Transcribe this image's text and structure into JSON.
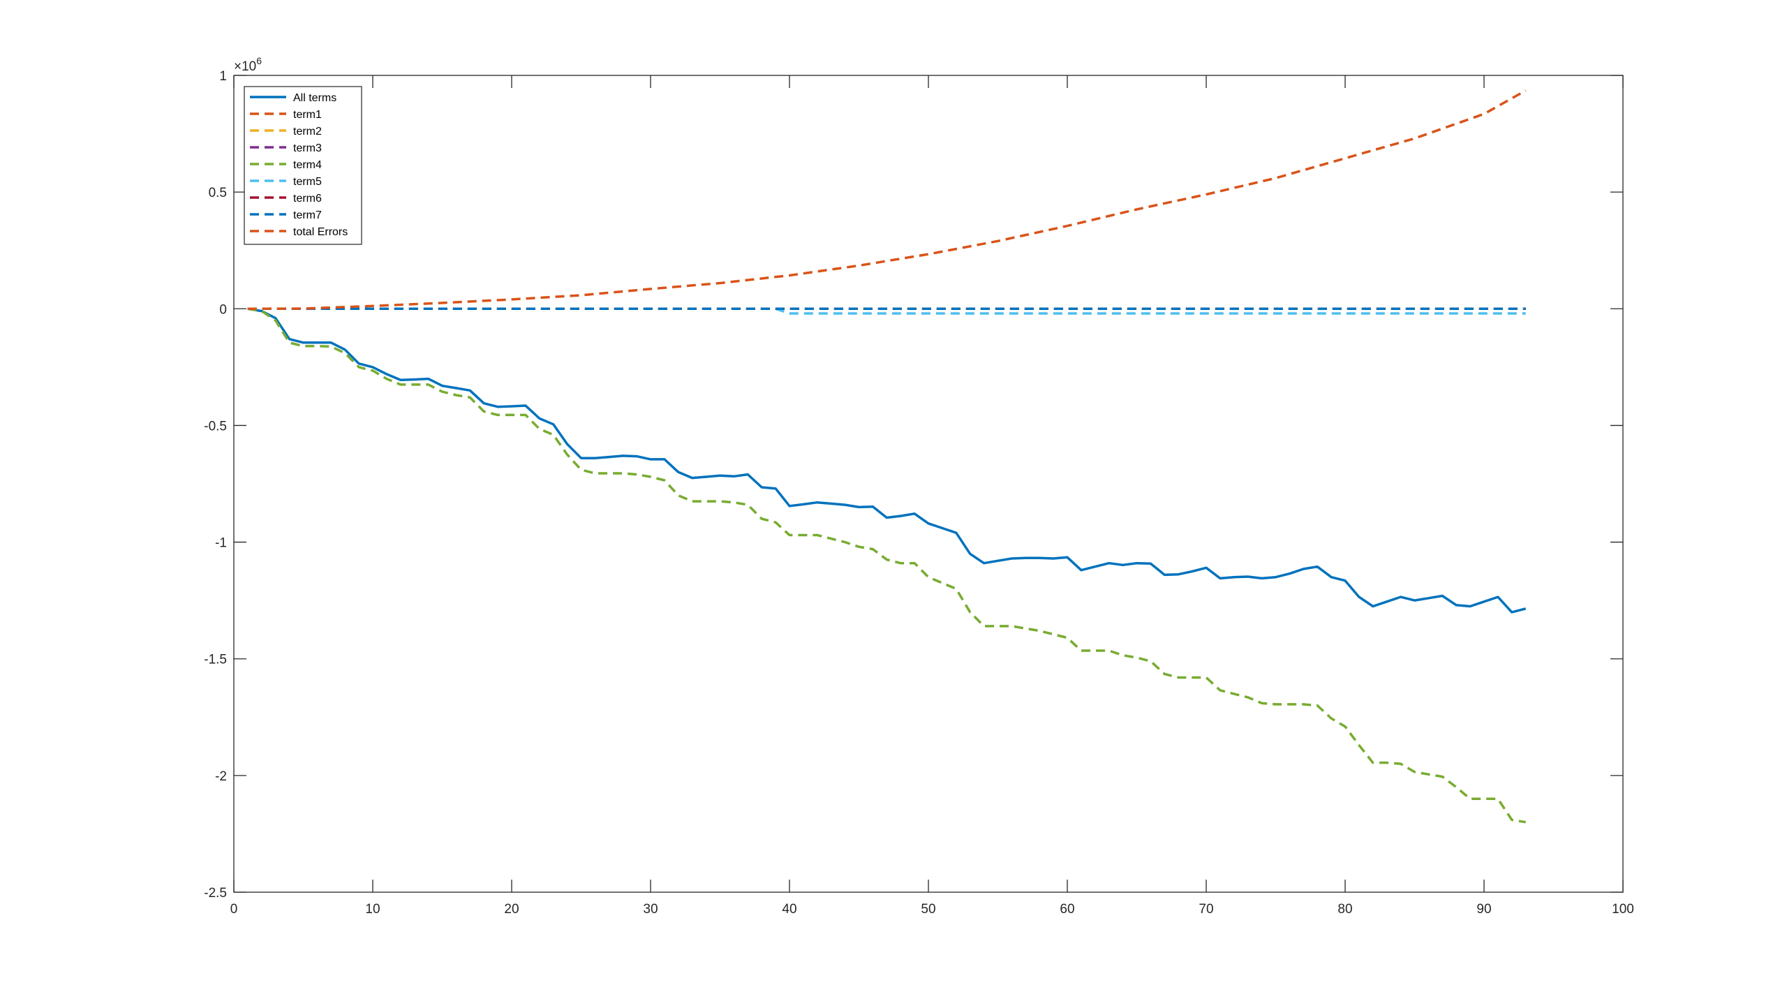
{
  "chart_data": {
    "type": "line",
    "title": "",
    "xlabel": "",
    "ylabel": "",
    "xlim": [
      0,
      100
    ],
    "ylim": [
      -2.5,
      1
    ],
    "y_exponent_label": "×10",
    "y_exponent_power": "6",
    "grid": false,
    "legend_position": "top-left",
    "x_ticks": [
      0,
      10,
      20,
      30,
      40,
      50,
      60,
      70,
      80,
      90,
      100
    ],
    "x_tick_labels": [
      "0",
      "10",
      "20",
      "30",
      "40",
      "50",
      "60",
      "70",
      "80",
      "90",
      "100"
    ],
    "y_ticks": [
      1,
      0.5,
      0,
      -0.5,
      -1,
      -1.5,
      -2,
      -2.5
    ],
    "y_tick_labels": [
      "1",
      "0.5",
      "0",
      "-0.5",
      "-1",
      "-1.5",
      "-2",
      "-2.5"
    ],
    "series": [
      {
        "name": "All terms",
        "color": "#0072BD",
        "dash": "solid",
        "points": [
          [
            1,
            0
          ],
          [
            2,
            -0.01
          ],
          [
            3,
            -0.04
          ],
          [
            4,
            -0.13
          ],
          [
            5,
            -0.145
          ],
          [
            6,
            -0.145
          ],
          [
            7,
            -0.145
          ],
          [
            8,
            -0.175
          ],
          [
            9,
            -0.235
          ],
          [
            10,
            -0.25
          ],
          [
            11,
            -0.28
          ],
          [
            12,
            -0.305
          ],
          [
            13,
            -0.303
          ],
          [
            14,
            -0.3
          ],
          [
            15,
            -0.33
          ],
          [
            16,
            -0.34
          ],
          [
            17,
            -0.35
          ],
          [
            18,
            -0.405
          ],
          [
            19,
            -0.42
          ],
          [
            20,
            -0.418
          ],
          [
            21,
            -0.415
          ],
          [
            22,
            -0.47
          ],
          [
            23,
            -0.495
          ],
          [
            24,
            -0.58
          ],
          [
            25,
            -0.64
          ],
          [
            26,
            -0.64
          ],
          [
            27,
            -0.635
          ],
          [
            28,
            -0.63
          ],
          [
            29,
            -0.632
          ],
          [
            30,
            -0.645
          ],
          [
            31,
            -0.645
          ],
          [
            32,
            -0.7
          ],
          [
            33,
            -0.725
          ],
          [
            34,
            -0.72
          ],
          [
            35,
            -0.715
          ],
          [
            36,
            -0.718
          ],
          [
            37,
            -0.71
          ],
          [
            38,
            -0.765
          ],
          [
            39,
            -0.77
          ],
          [
            40,
            -0.845
          ],
          [
            41,
            -0.838
          ],
          [
            42,
            -0.83
          ],
          [
            43,
            -0.835
          ],
          [
            44,
            -0.84
          ],
          [
            45,
            -0.85
          ],
          [
            46,
            -0.848
          ],
          [
            47,
            -0.895
          ],
          [
            48,
            -0.888
          ],
          [
            49,
            -0.878
          ],
          [
            50,
            -0.92
          ],
          [
            51,
            -0.94
          ],
          [
            52,
            -0.96
          ],
          [
            53,
            -1.05
          ],
          [
            54,
            -1.09
          ],
          [
            55,
            -1.08
          ],
          [
            56,
            -1.07
          ],
          [
            57,
            -1.068
          ],
          [
            58,
            -1.068
          ],
          [
            59,
            -1.07
          ],
          [
            60,
            -1.065
          ],
          [
            61,
            -1.12
          ],
          [
            62,
            -1.105
          ],
          [
            63,
            -1.09
          ],
          [
            64,
            -1.098
          ],
          [
            65,
            -1.09
          ],
          [
            66,
            -1.092
          ],
          [
            67,
            -1.14
          ],
          [
            68,
            -1.138
          ],
          [
            69,
            -1.125
          ],
          [
            70,
            -1.11
          ],
          [
            71,
            -1.155
          ],
          [
            72,
            -1.15
          ],
          [
            73,
            -1.148
          ],
          [
            74,
            -1.155
          ],
          [
            75,
            -1.15
          ],
          [
            76,
            -1.135
          ],
          [
            77,
            -1.115
          ],
          [
            78,
            -1.105
          ],
          [
            79,
            -1.15
          ],
          [
            80,
            -1.165
          ],
          [
            81,
            -1.235
          ],
          [
            82,
            -1.275
          ],
          [
            83,
            -1.255
          ],
          [
            84,
            -1.235
          ],
          [
            85,
            -1.25
          ],
          [
            86,
            -1.24
          ],
          [
            87,
            -1.23
          ],
          [
            88,
            -1.27
          ],
          [
            89,
            -1.275
          ],
          [
            90,
            -1.255
          ],
          [
            91,
            -1.235
          ],
          [
            92,
            -1.3
          ],
          [
            93,
            -1.285
          ]
        ]
      },
      {
        "name": "term1",
        "color": "#D95319",
        "dash": "dashed",
        "points": [
          [
            1,
            0
          ],
          [
            93,
            0
          ]
        ]
      },
      {
        "name": "term2",
        "color": "#EDB120",
        "dash": "dashed",
        "points": [
          [
            1,
            0
          ],
          [
            93,
            0
          ]
        ]
      },
      {
        "name": "term3",
        "color": "#7E2F8E",
        "dash": "dashed",
        "points": [
          [
            1,
            0
          ],
          [
            93,
            0
          ]
        ]
      },
      {
        "name": "term4",
        "color": "#77AC30",
        "dash": "dashed",
        "points": [
          [
            1,
            0
          ],
          [
            2,
            -0.01
          ],
          [
            3,
            -0.05
          ],
          [
            4,
            -0.145
          ],
          [
            5,
            -0.16
          ],
          [
            6,
            -0.16
          ],
          [
            7,
            -0.162
          ],
          [
            8,
            -0.19
          ],
          [
            9,
            -0.25
          ],
          [
            10,
            -0.265
          ],
          [
            11,
            -0.3
          ],
          [
            12,
            -0.325
          ],
          [
            13,
            -0.325
          ],
          [
            14,
            -0.325
          ],
          [
            15,
            -0.355
          ],
          [
            16,
            -0.37
          ],
          [
            17,
            -0.38
          ],
          [
            18,
            -0.44
          ],
          [
            19,
            -0.455
          ],
          [
            20,
            -0.455
          ],
          [
            21,
            -0.455
          ],
          [
            22,
            -0.515
          ],
          [
            23,
            -0.54
          ],
          [
            24,
            -0.625
          ],
          [
            25,
            -0.69
          ],
          [
            26,
            -0.705
          ],
          [
            27,
            -0.705
          ],
          [
            28,
            -0.705
          ],
          [
            29,
            -0.71
          ],
          [
            30,
            -0.72
          ],
          [
            31,
            -0.735
          ],
          [
            32,
            -0.8
          ],
          [
            33,
            -0.825
          ],
          [
            34,
            -0.825
          ],
          [
            35,
            -0.825
          ],
          [
            36,
            -0.83
          ],
          [
            37,
            -0.84
          ],
          [
            38,
            -0.9
          ],
          [
            39,
            -0.915
          ],
          [
            40,
            -0.97
          ],
          [
            41,
            -0.97
          ],
          [
            42,
            -0.97
          ],
          [
            43,
            -0.985
          ],
          [
            44,
            -1.0
          ],
          [
            45,
            -1.02
          ],
          [
            46,
            -1.03
          ],
          [
            47,
            -1.075
          ],
          [
            48,
            -1.09
          ],
          [
            49,
            -1.09
          ],
          [
            50,
            -1.15
          ],
          [
            51,
            -1.175
          ],
          [
            52,
            -1.2
          ],
          [
            53,
            -1.3
          ],
          [
            54,
            -1.36
          ],
          [
            55,
            -1.36
          ],
          [
            56,
            -1.36
          ],
          [
            57,
            -1.37
          ],
          [
            58,
            -1.38
          ],
          [
            59,
            -1.395
          ],
          [
            60,
            -1.41
          ],
          [
            61,
            -1.465
          ],
          [
            62,
            -1.465
          ],
          [
            63,
            -1.465
          ],
          [
            64,
            -1.485
          ],
          [
            65,
            -1.495
          ],
          [
            66,
            -1.51
          ],
          [
            67,
            -1.565
          ],
          [
            68,
            -1.58
          ],
          [
            69,
            -1.58
          ],
          [
            70,
            -1.58
          ],
          [
            71,
            -1.635
          ],
          [
            72,
            -1.65
          ],
          [
            73,
            -1.665
          ],
          [
            74,
            -1.69
          ],
          [
            75,
            -1.695
          ],
          [
            76,
            -1.695
          ],
          [
            77,
            -1.695
          ],
          [
            78,
            -1.7
          ],
          [
            79,
            -1.755
          ],
          [
            80,
            -1.79
          ],
          [
            81,
            -1.87
          ],
          [
            82,
            -1.945
          ],
          [
            83,
            -1.945
          ],
          [
            84,
            -1.95
          ],
          [
            85,
            -1.985
          ],
          [
            86,
            -1.995
          ],
          [
            87,
            -2.005
          ],
          [
            88,
            -2.05
          ],
          [
            89,
            -2.1
          ],
          [
            90,
            -2.1
          ],
          [
            91,
            -2.1
          ],
          [
            92,
            -2.19
          ],
          [
            93,
            -2.2
          ]
        ]
      },
      {
        "name": "term5",
        "color": "#4DBEEE",
        "dash": "dashed",
        "points": [
          [
            1,
            0
          ],
          [
            39,
            0
          ],
          [
            40,
            -0.02
          ],
          [
            93,
            -0.02
          ]
        ]
      },
      {
        "name": "term6",
        "color": "#A2142F",
        "dash": "dashed",
        "points": [
          [
            1,
            0
          ],
          [
            93,
            0
          ]
        ]
      },
      {
        "name": "term7",
        "color": "#0072BD",
        "dash": "dashed",
        "points": [
          [
            1,
            0
          ],
          [
            93,
            0
          ]
        ]
      },
      {
        "name": "total Errors",
        "color": "#D95319",
        "dash": "dashed",
        "points": [
          [
            1,
            0
          ],
          [
            5,
            0.0008
          ],
          [
            10,
            0.012
          ],
          [
            15,
            0.025
          ],
          [
            20,
            0.04
          ],
          [
            25,
            0.058
          ],
          [
            30,
            0.085
          ],
          [
            35,
            0.11
          ],
          [
            40,
            0.143
          ],
          [
            45,
            0.185
          ],
          [
            50,
            0.234
          ],
          [
            55,
            0.29
          ],
          [
            60,
            0.355
          ],
          [
            65,
            0.426
          ],
          [
            70,
            0.49
          ],
          [
            75,
            0.56
          ],
          [
            80,
            0.645
          ],
          [
            85,
            0.73
          ],
          [
            90,
            0.835
          ],
          [
            93,
            0.935
          ]
        ]
      }
    ]
  }
}
